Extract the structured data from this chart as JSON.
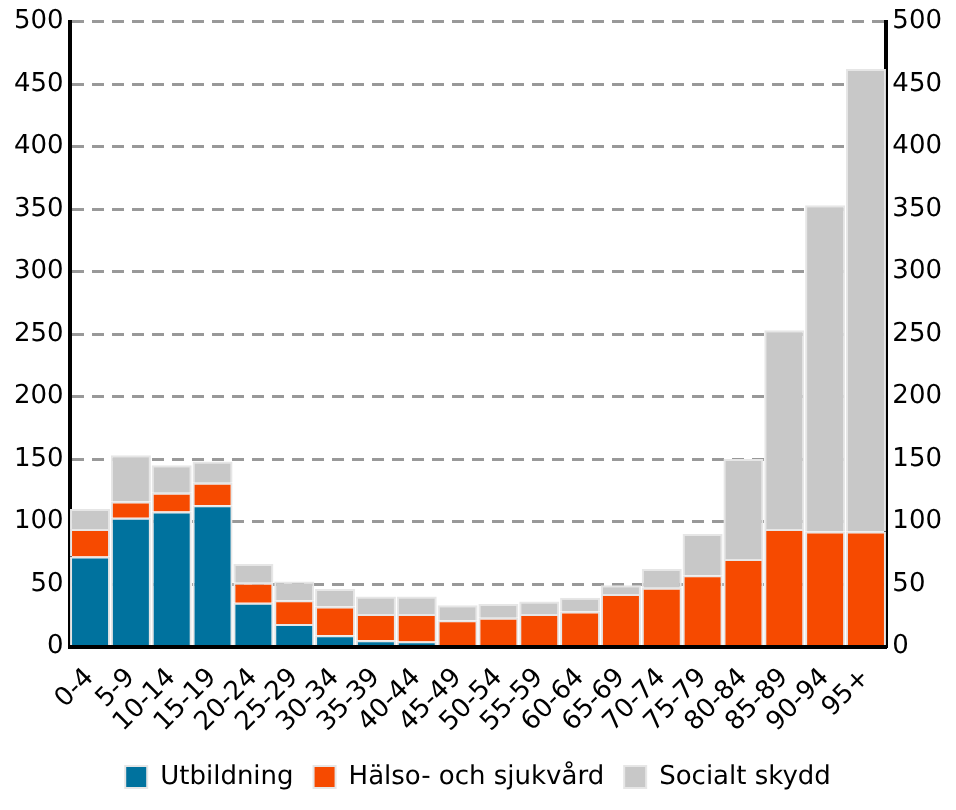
{
  "chart_data": {
    "type": "bar",
    "stacked": true,
    "categories": [
      "0-4",
      "5-9",
      "10-14",
      "15-19",
      "20-24",
      "25-29",
      "30-34",
      "35-39",
      "40-44",
      "45-49",
      "50-54",
      "55-59",
      "60-64",
      "65-69",
      "70-74",
      "75-79",
      "80-84",
      "85-89",
      "90-94",
      "95+"
    ],
    "series": [
      {
        "name": "Utbildning",
        "color": "#00729e",
        "values": [
          72,
          103,
          108,
          113,
          35,
          18,
          9,
          5,
          4,
          null,
          null,
          null,
          null,
          0,
          0,
          0,
          0,
          0,
          0,
          0
        ]
      },
      {
        "name": "Hälso- och sjukvård",
        "color": "#f64a00",
        "values": [
          22,
          13,
          15,
          18,
          16,
          19,
          23,
          21,
          22,
          21,
          23,
          26,
          28,
          42,
          47,
          57,
          70,
          94,
          92,
          92
        ]
      },
      {
        "name": "Socialt skydd",
        "color": "#c8c8c8",
        "values": [
          16,
          37,
          22,
          17,
          15,
          15,
          14,
          14,
          14,
          12,
          11,
          10,
          11,
          7,
          15,
          33,
          80,
          159,
          261,
          370
        ]
      }
    ],
    "ylim": [
      0,
      500
    ],
    "yticks": [
      0,
      50,
      100,
      150,
      200,
      250,
      300,
      350,
      400,
      450,
      500
    ],
    "y2lim": [
      0,
      500
    ],
    "y2ticks": [
      0,
      50,
      100,
      150,
      200,
      250,
      300,
      350,
      400,
      450,
      500
    ],
    "grid": "y",
    "line_style": "dashed",
    "legend": "bottom"
  }
}
